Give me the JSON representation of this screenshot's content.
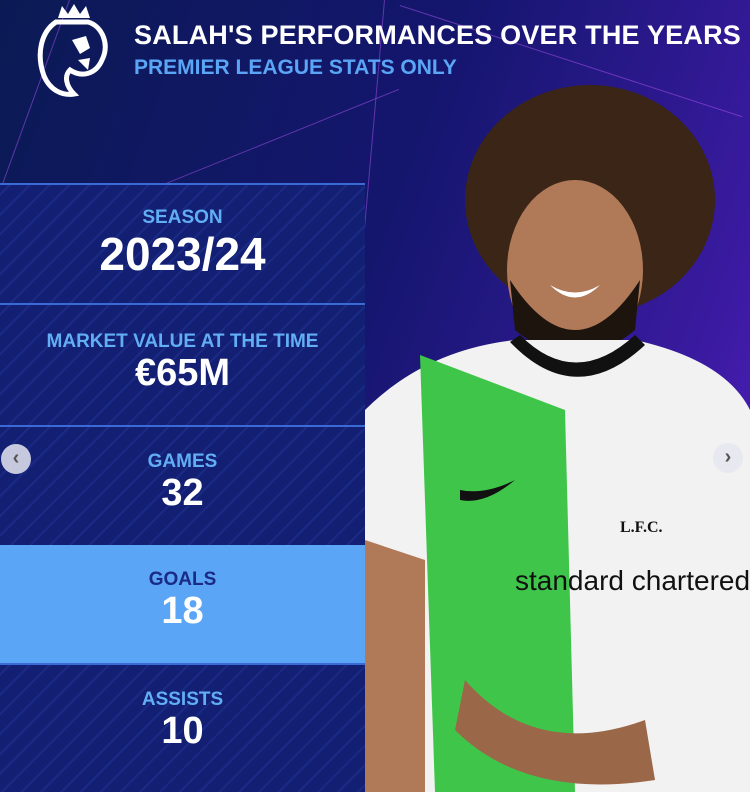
{
  "header": {
    "title": "SALAH'S PERFORMANCES OVER THE YEARS",
    "subtitle": "PREMIER LEAGUE STATS ONLY",
    "logo": "premier-league-lion-logo"
  },
  "stats": [
    {
      "label": "SEASON",
      "value": "2023/24"
    },
    {
      "label": "MARKET VALUE AT THE TIME",
      "value": "€65M"
    },
    {
      "label": "GAMES",
      "value": "32"
    },
    {
      "label": "GOALS",
      "value": "18",
      "highlighted": true
    },
    {
      "label": "ASSISTS",
      "value": "10"
    }
  ],
  "photo": {
    "sponsor": "standard chartered",
    "club_crest": "L.F.C."
  },
  "navigation": {
    "prev_icon": "chevron-left-icon",
    "next_icon": "chevron-right-icon",
    "prev_glyph": "‹",
    "next_glyph": "›"
  },
  "colors": {
    "background": "#13206f",
    "accent": "#5aa5f5",
    "title": "#ffffff"
  }
}
